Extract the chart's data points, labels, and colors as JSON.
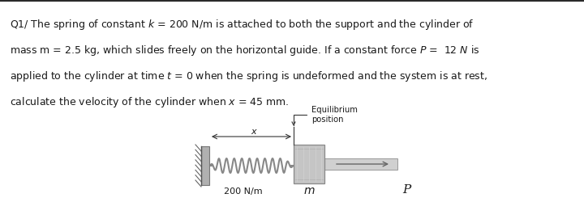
{
  "bg_color": "#ffffff",
  "text_color": "#1a1a1a",
  "line1": "Q1/ The spring of constant $k$ = 200 N/m is attached to both the support and the cylinder of",
  "line2": "mass m = 2.5 kg, which slides freely on the horizontal guide. If a constant force $P$ =  12 $N$ is",
  "line3": "applied to the cylinder at time $t$ = 0 when the spring is undeformed and the system is at rest,",
  "line4": "calculate the velocity of the cylinder when $x$ = 45 mm.",
  "label_spring": "200 N/m",
  "label_mass": "m",
  "label_force": "P",
  "label_eq": "Equilibrium\nposition",
  "label_x": "x",
  "wall_color": "#999999",
  "spring_color": "#888888",
  "cyl_color": "#c8c8c8",
  "rod_color": "#c8c8c8"
}
